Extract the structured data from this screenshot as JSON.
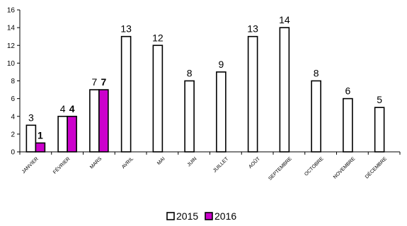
{
  "chart_data": {
    "type": "bar",
    "categories": [
      "JANVIER",
      "FÉVRIER",
      "MARS",
      "AVRIL",
      "MAI",
      "JUIN",
      "JUILLET",
      "AOÛT",
      "SEPTEMBRE",
      "OCTOBRE",
      "NOVEMBRE",
      "DÉCEMBRE"
    ],
    "series": [
      {
        "name": "2015",
        "values": [
          3,
          4,
          7,
          13,
          12,
          8,
          9,
          13,
          14,
          8,
          6,
          5
        ],
        "color": "#ffffff",
        "stroke": "#000000"
      },
      {
        "name": "2016",
        "values": [
          1,
          4,
          7,
          null,
          null,
          null,
          null,
          null,
          null,
          null,
          null,
          null
        ],
        "color": "#cc00cc",
        "stroke": "#000000"
      }
    ],
    "ylim": [
      0,
      16
    ],
    "yticks": [
      0,
      2,
      4,
      6,
      8,
      10,
      12,
      14,
      16
    ],
    "grid": false,
    "legend": "bottom",
    "title": "",
    "xlabel": "",
    "ylabel": ""
  }
}
